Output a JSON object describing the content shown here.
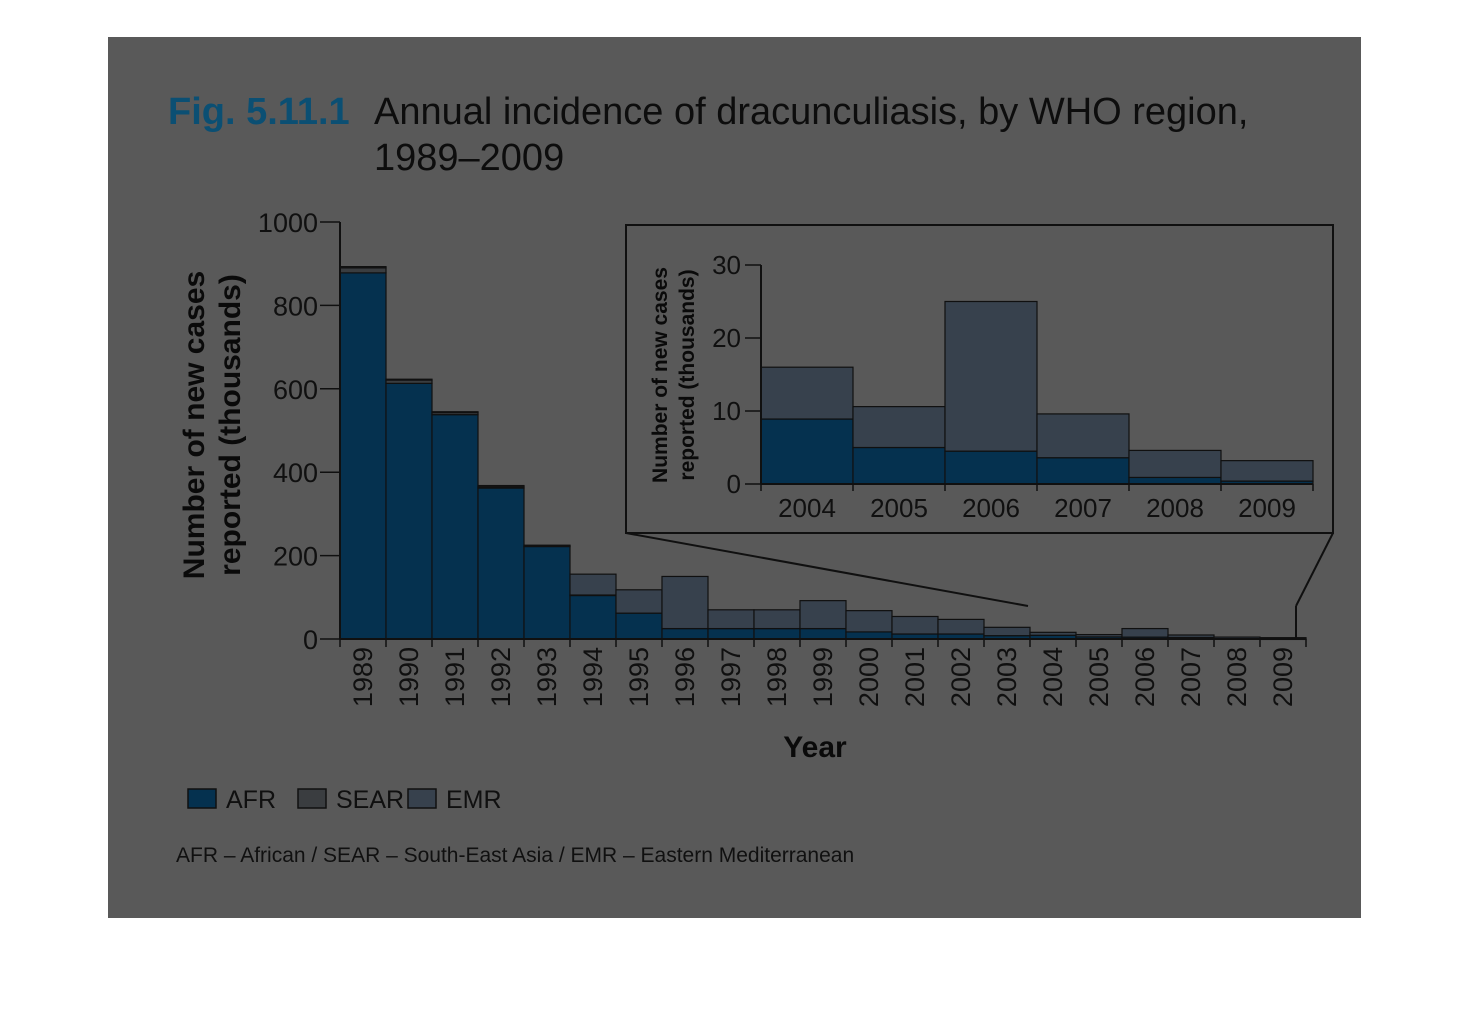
{
  "figure": {
    "number": "Fig. 5.11.1",
    "title_line1": "Annual incidence of dracunculiasis, by WHO region,",
    "title_line2": "1989–2009",
    "note": "AFR – African / SEAR – South-East Asia / EMR – Eastern Mediterranean"
  },
  "colors": {
    "panel": "#595959",
    "AFR": "#05314f",
    "SEAR": "#3a3d40",
    "EMR": "#37414d",
    "axis": "#101010",
    "title_number": "#0b4f73"
  },
  "chart_data": [
    {
      "type": "bar",
      "stacked": true,
      "xlabel": "Year",
      "ylabel_line1": "Number of new cases",
      "ylabel_line2": "reported (thousands)",
      "ylim": [
        0,
        1000
      ],
      "yticks": [
        "0",
        "200",
        "400",
        "600",
        "800",
        "1000"
      ],
      "categories": [
        "1989",
        "1990",
        "1991",
        "1992",
        "1993",
        "1994",
        "1995",
        "1996",
        "1997",
        "1998",
        "1999",
        "2000",
        "2001",
        "2002",
        "2003",
        "2004",
        "2005",
        "2006",
        "2007",
        "2008",
        "2009"
      ],
      "series": [
        {
          "name": "AFR",
          "values": [
            878,
            613,
            538,
            362,
            222,
            105,
            62,
            25,
            25,
            25,
            25,
            17,
            12,
            12,
            8,
            8.9,
            5.0,
            4.5,
            3.6,
            0.9,
            0.4
          ]
        },
        {
          "name": "SEAR",
          "values": [
            12,
            8,
            5,
            3,
            1,
            0.5,
            0,
            0,
            0,
            0,
            0,
            0,
            0,
            0,
            0,
            0,
            0,
            0,
            0,
            0,
            0
          ]
        },
        {
          "name": "EMR",
          "values": [
            3,
            2,
            2,
            3,
            2,
            50,
            56,
            125,
            45,
            45,
            67,
            51,
            42,
            35,
            20,
            7.1,
            5.6,
            20.5,
            6.0,
            3.7,
            2.8
          ]
        }
      ],
      "legend": [
        "AFR",
        "SEAR",
        "EMR"
      ],
      "legend_position": "bottom-left"
    },
    {
      "type": "bar",
      "stacked": true,
      "inset": true,
      "ylabel_line1": "Number of new cases",
      "ylabel_line2": "reported (thousands)",
      "ylim": [
        0,
        30
      ],
      "yticks": [
        "0",
        "10",
        "20",
        "30"
      ],
      "categories": [
        "2004",
        "2005",
        "2006",
        "2007",
        "2008",
        "2009"
      ],
      "series": [
        {
          "name": "AFR",
          "values": [
            8.9,
            5.0,
            4.5,
            3.6,
            0.9,
            0.4
          ]
        },
        {
          "name": "EMR",
          "values": [
            7.1,
            5.6,
            20.5,
            6.0,
            3.7,
            2.8
          ]
        }
      ]
    }
  ]
}
